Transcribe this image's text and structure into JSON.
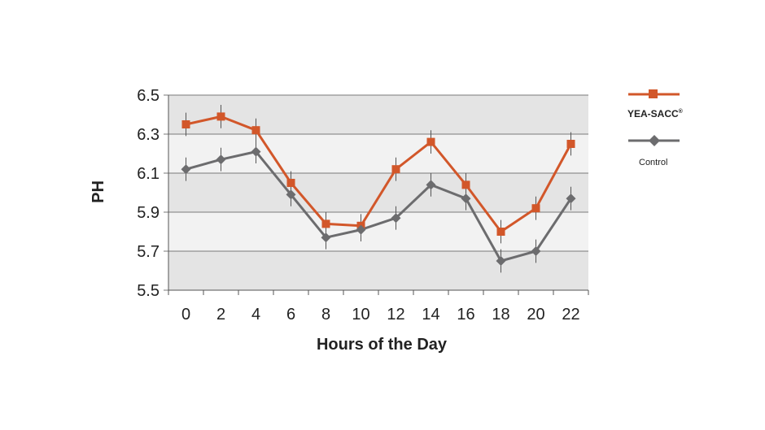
{
  "chart_data": {
    "type": "line",
    "title": "",
    "xlabel": "Hours of the Day",
    "ylabel": "PH",
    "x": [
      0,
      2,
      4,
      6,
      8,
      10,
      12,
      14,
      16,
      18,
      20,
      22
    ],
    "x_tick_labels": [
      "0",
      "2",
      "4",
      "6",
      "8",
      "10",
      "12",
      "14",
      "16",
      "18",
      "20",
      "22"
    ],
    "y_tick_labels": [
      "6.5",
      "6.3",
      "6.1",
      "5.9",
      "5.7",
      "5.5"
    ],
    "ylim": [
      5.5,
      6.5
    ],
    "y_ticks": [
      5.5,
      5.7,
      5.9,
      6.1,
      6.3,
      6.5
    ],
    "grid": true,
    "legend_position": "right",
    "series": [
      {
        "name": "YEA-SACC",
        "legend_label": "YEA-SACC",
        "legend_superscript": "®",
        "color": "#D2572A",
        "marker": "square",
        "values": [
          6.35,
          6.39,
          6.32,
          6.05,
          5.84,
          5.83,
          6.12,
          6.26,
          6.04,
          5.8,
          5.92,
          6.25
        ],
        "error": 0.06
      },
      {
        "name": "Control",
        "legend_label": "Control",
        "color": "#6C6C6E",
        "marker": "diamond",
        "values": [
          6.12,
          6.17,
          6.21,
          5.99,
          5.77,
          5.81,
          5.87,
          6.04,
          5.97,
          5.65,
          5.7,
          5.97
        ],
        "error": 0.06
      }
    ],
    "band_colors": [
      "#E4E4E4",
      "#F2F2F2"
    ],
    "grid_color": "#7A7A7A",
    "errorbar_color": "#555555"
  }
}
